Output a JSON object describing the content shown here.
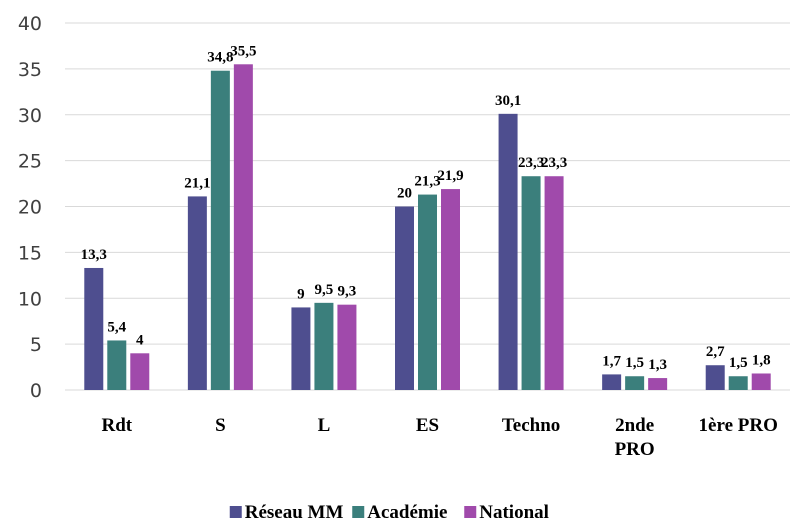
{
  "chart_data": {
    "type": "bar",
    "title": "",
    "xlabel": "",
    "ylabel": "",
    "ylim": [
      0,
      40
    ],
    "yticks": [
      0,
      5,
      10,
      15,
      20,
      25,
      30,
      35,
      40
    ],
    "grid": true,
    "legend_position": "bottom",
    "categories": [
      "Rdt",
      "S",
      "L",
      "ES",
      "Techno",
      "2nde PRO",
      "1ère PRO"
    ],
    "series": [
      {
        "name": "Réseau MM",
        "color": "#4e4e8f",
        "values": [
          13.3,
          21.1,
          9,
          20,
          30.1,
          1.7,
          2.7
        ],
        "labels": [
          "13,3",
          "21,1",
          "9",
          "20",
          "30,1",
          "1,7",
          "2,7"
        ]
      },
      {
        "name": "Académie",
        "color": "#3b7f7c",
        "values": [
          5.4,
          34.8,
          9.5,
          21.3,
          23.3,
          1.5,
          1.5
        ],
        "labels": [
          "5,4",
          "34,8",
          "9,5",
          "21,3",
          "23,3",
          "1,5",
          "1,5"
        ]
      },
      {
        "name": "National",
        "color": "#a04aab",
        "values": [
          4,
          35.5,
          9.3,
          21.9,
          23.3,
          1.3,
          1.8
        ],
        "labels": [
          "4",
          "35,5",
          "9,3",
          "21,9",
          "23,3",
          "1,3",
          "1,8"
        ]
      }
    ]
  }
}
